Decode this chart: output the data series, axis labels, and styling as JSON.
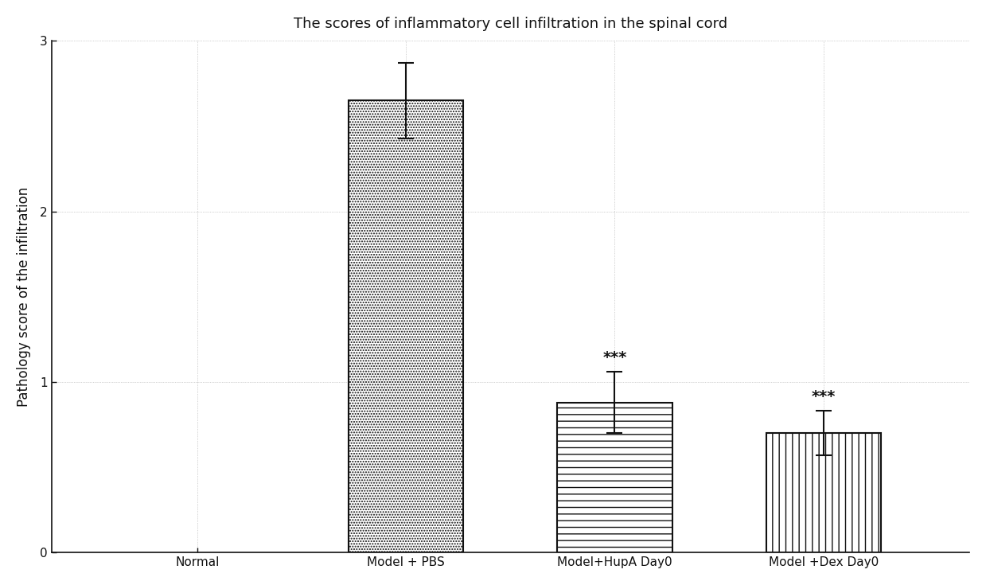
{
  "categories": [
    "Normal",
    "Model + PBS",
    "Model+HupA Day0",
    "Model +Dex Day0"
  ],
  "values": [
    0.0,
    2.65,
    0.88,
    0.7
  ],
  "errors": [
    0.0,
    0.22,
    0.18,
    0.13
  ],
  "hatches": [
    "",
    ".....",
    "--",
    "||"
  ],
  "bar_facecolor": [
    "white",
    "white",
    "white",
    "white"
  ],
  "bar_edge_colors": [
    "#111111",
    "#111111",
    "#111111",
    "#111111"
  ],
  "title": "The scores of inflammatory cell infiltration in the spinal cord",
  "ylabel": "Pathology score of the infiltration",
  "ylim": [
    0,
    3
  ],
  "yticks": [
    0,
    1,
    2,
    3
  ],
  "significance": [
    "",
    "",
    "***",
    "***"
  ],
  "background_color": "#ffffff",
  "grid_color": "#aaaaaa",
  "title_fontsize": 13,
  "label_fontsize": 12,
  "tick_fontsize": 11
}
